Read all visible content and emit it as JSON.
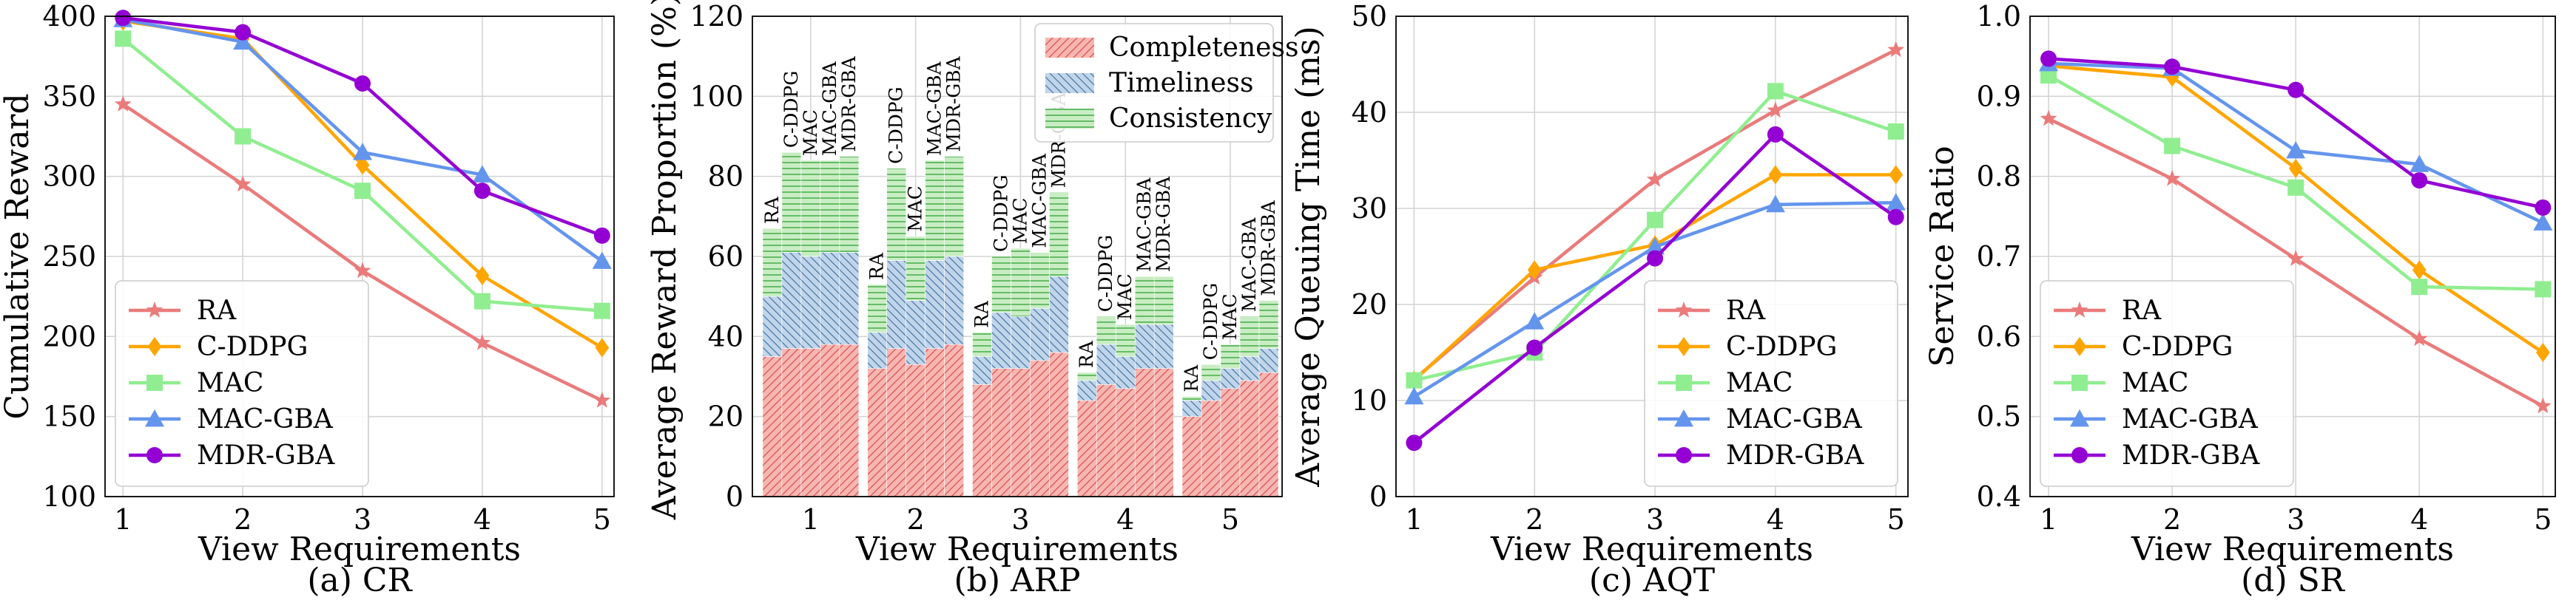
{
  "chart_data": [
    {
      "type": "line",
      "caption": "(a) CR",
      "xlabel": "View Requirements",
      "ylabel": "Cumulative Reward",
      "x": [
        1,
        2,
        3,
        4,
        5
      ],
      "xlim": [
        0.85,
        5.1
      ],
      "ylim": [
        100,
        400
      ],
      "yticks": [
        100,
        150,
        200,
        250,
        300,
        350,
        400
      ],
      "grid": true,
      "legend_position": "bottom-left",
      "series": [
        {
          "name": "RA",
          "values": [
            345,
            295,
            241,
            196,
            160
          ]
        },
        {
          "name": "C-DDPG",
          "values": [
            397,
            386,
            307,
            238,
            193
          ]
        },
        {
          "name": "MAC",
          "values": [
            386,
            325,
            291,
            222,
            216
          ]
        },
        {
          "name": "MAC-GBA",
          "values": [
            398,
            384,
            315,
            301,
            247
          ]
        },
        {
          "name": "MDR-GBA",
          "values": [
            399,
            390,
            358,
            291,
            263
          ]
        }
      ]
    },
    {
      "type": "bar",
      "stacked": true,
      "caption": "(b) ARP",
      "xlabel": "View Requirements",
      "ylabel": "Average Reward Proportion (%)",
      "categories": [
        "1",
        "2",
        "3",
        "4",
        "5"
      ],
      "bar_labels": [
        "RA",
        "C-DDPG",
        "MAC",
        "MAC-GBA",
        "MDR-GBA"
      ],
      "ylim": [
        0,
        120
      ],
      "yticks": [
        0,
        20,
        40,
        60,
        80,
        100,
        120
      ],
      "grid": true,
      "legend_position": "top-right",
      "series": [
        {
          "name": "Completeness",
          "values": [
            [
              35,
              37,
              37,
              38,
              38
            ],
            [
              32,
              37,
              33,
              37,
              38
            ],
            [
              28,
              32,
              32,
              34,
              36
            ],
            [
              24,
              28,
              27,
              32,
              32
            ],
            [
              20,
              24,
              27,
              29,
              31
            ]
          ]
        },
        {
          "name": "Timeliness",
          "values": [
            [
              15,
              24,
              23,
              23,
              23
            ],
            [
              9,
              22,
              16,
              22,
              22
            ],
            [
              7,
              14,
              13,
              13,
              19
            ],
            [
              5,
              10,
              8,
              11,
              11
            ],
            [
              4,
              5,
              5,
              6,
              6
            ]
          ]
        },
        {
          "name": "Consistency",
          "values": [
            [
              17,
              25,
              24,
              23,
              24
            ],
            [
              12,
              23,
              16,
              25,
              25
            ],
            [
              6,
              14,
              17,
              14,
              21
            ],
            [
              2,
              7,
              8,
              12,
              12
            ],
            [
              1,
              4,
              6,
              10,
              12
            ]
          ]
        }
      ]
    },
    {
      "type": "line",
      "caption": "(c) AQT",
      "xlabel": "View Requirements",
      "ylabel": "Average Queuing Time (ms)",
      "x": [
        1,
        2,
        3,
        4,
        5
      ],
      "xlim": [
        0.85,
        5.1
      ],
      "ylim": [
        0,
        50
      ],
      "yticks": [
        0,
        10,
        20,
        30,
        40,
        50
      ],
      "grid": true,
      "legend_position": "bottom-right",
      "series": [
        {
          "name": "RA",
          "values": [
            12.2,
            22.8,
            33.0,
            40.2,
            46.5
          ]
        },
        {
          "name": "C-DDPG",
          "values": [
            12.1,
            23.6,
            26.2,
            33.5,
            33.5
          ]
        },
        {
          "name": "MAC",
          "values": [
            12.1,
            15.0,
            28.8,
            42.2,
            38.0
          ]
        },
        {
          "name": "MAC-GBA",
          "values": [
            10.4,
            18.2,
            26.0,
            30.4,
            30.6
          ]
        },
        {
          "name": "MDR-GBA",
          "values": [
            5.6,
            15.5,
            24.8,
            37.7,
            29.1
          ]
        }
      ]
    },
    {
      "type": "line",
      "caption": "(d) SR",
      "xlabel": "View Requirements",
      "ylabel": "Service Ratio",
      "x": [
        1,
        2,
        3,
        4,
        5
      ],
      "xlim": [
        0.85,
        5.1
      ],
      "ylim": [
        0.4,
        1.0
      ],
      "yticks": [
        "0.4",
        "0.5",
        "0.6",
        "0.7",
        "0.8",
        "0.9",
        "1.0"
      ],
      "grid": true,
      "legend_position": "bottom-left",
      "series": [
        {
          "name": "RA",
          "values": [
            0.872,
            0.797,
            0.697,
            0.597,
            0.513
          ]
        },
        {
          "name": "C-DDPG",
          "values": [
            0.938,
            0.924,
            0.81,
            0.683,
            0.58
          ]
        },
        {
          "name": "MAC",
          "values": [
            0.926,
            0.838,
            0.786,
            0.662,
            0.659
          ]
        },
        {
          "name": "MAC-GBA",
          "values": [
            0.941,
            0.935,
            0.832,
            0.815,
            0.742
          ]
        },
        {
          "name": "MDR-GBA",
          "values": [
            0.947,
            0.937,
            0.908,
            0.795,
            0.761
          ]
        }
      ]
    }
  ],
  "style": {
    "series_colors": {
      "RA": "#ea7b7b",
      "C-DDPG": "#ffa500",
      "MAC": "#90ee90",
      "MAC-GBA": "#6495ed",
      "MDR-GBA": "#9400d3"
    },
    "series_markers": {
      "RA": "star",
      "C-DDPG": "diamond",
      "MAC": "square",
      "MAC-GBA": "triangle",
      "MDR-GBA": "circle"
    },
    "stack_colors": {
      "Completeness": {
        "fill": "#f7b6b2",
        "hatch": "#d9534f"
      },
      "Timeliness": {
        "fill": "#c1d5ea",
        "hatch": "#4a79a8"
      },
      "Consistency": {
        "fill": "#c9edc3",
        "hatch": "#4caf50"
      }
    }
  }
}
